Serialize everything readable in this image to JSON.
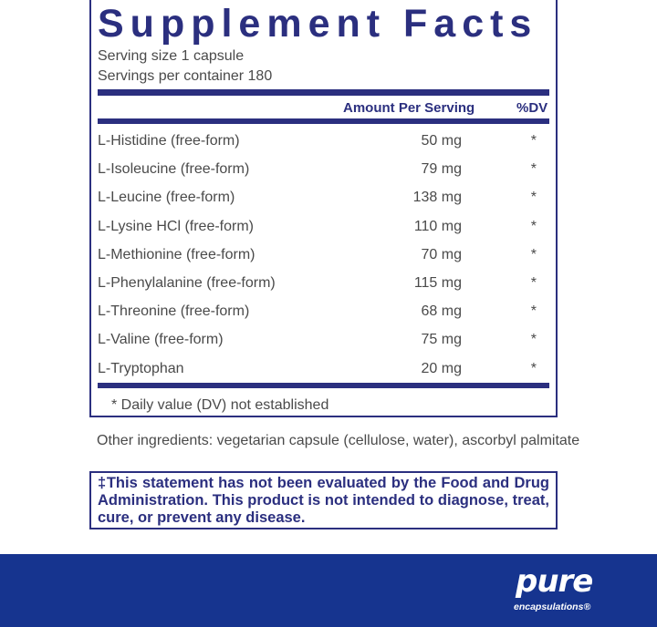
{
  "title": "Supplement Facts",
  "serving_size": "Serving size  1 capsule",
  "servings_per_container": "Servings per container  180",
  "header": {
    "amount": "Amount Per Serving",
    "dv": "%DV"
  },
  "rows": [
    {
      "name": "L-Histidine (free-form)",
      "amount": "50 mg",
      "dv": "*"
    },
    {
      "name": "L-Isoleucine  (free-form)",
      "amount": "79 mg",
      "dv": "*"
    },
    {
      "name": "L-Leucine (free-form)",
      "amount": "138 mg",
      "dv": "*"
    },
    {
      "name": "L-Lysine HCl (free-form)",
      "amount": "110 mg",
      "dv": "*"
    },
    {
      "name": "L-Methionine (free-form)",
      "amount": "70 mg",
      "dv": "*"
    },
    {
      "name": "L-Phenylalanine (free-form)",
      "amount": "115 mg",
      "dv": "*"
    },
    {
      "name": "L-Threonine (free-form)",
      "amount": "68 mg",
      "dv": "*"
    },
    {
      "name": "L-Valine (free-form)",
      "amount": "75 mg",
      "dv": "*"
    },
    {
      "name": "L-Tryptophan",
      "amount": "20 mg",
      "dv": "*"
    }
  ],
  "footnote": "* Daily value (DV) not established",
  "other_ingredients": "Other ingredients: vegetarian capsule (cellulose, water), ascorbyl palmitate",
  "disclaimer": "‡This statement has not been evaluated by the Food and Drug Administration. This product is not intended to diagnose, treat, cure, or prevent any disease.",
  "logo": {
    "line1": "pure",
    "line2": "encapsulations®"
  },
  "colors": {
    "navy": "#2b2f7f",
    "footer": "#16348f"
  }
}
